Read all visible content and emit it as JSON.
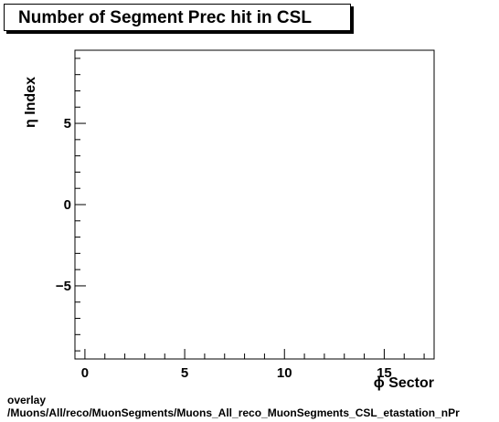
{
  "chart_data": {
    "type": "heatmap",
    "title": "Number of Segment Prec hit in CSL",
    "xlabel": "ϕ Sector",
    "ylabel": "η Index",
    "xlim": [
      -0.5,
      17.5
    ],
    "ylim": [
      -9.5,
      9.5
    ],
    "x_ticks": [
      0,
      5,
      10,
      15
    ],
    "x_tick_labels": [
      "0",
      "5",
      "10",
      "15"
    ],
    "y_ticks": [
      -5,
      0,
      5
    ],
    "y_tick_labels": [
      "−5",
      "0",
      "5"
    ],
    "grid": false,
    "values": []
  },
  "footer": {
    "line1": "overlay",
    "line2": "/Muons/All/reco/MuonSegments/Muons_All_reco_MuonSegments_CSL_etastation_nPr"
  }
}
